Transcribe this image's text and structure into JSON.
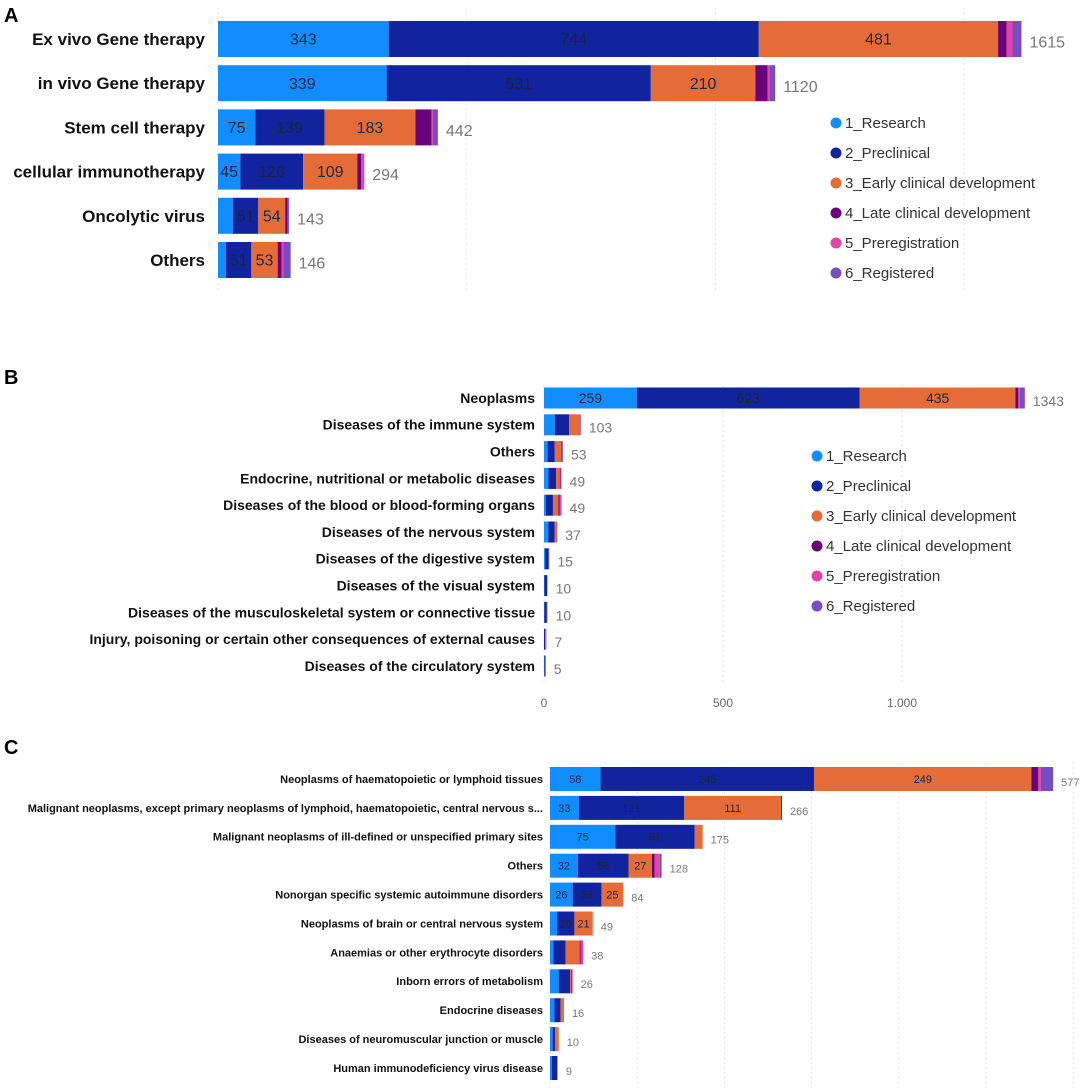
{
  "legend": {
    "stages": [
      "1_Research",
      "2_Preclinical",
      "3_Early clinical development",
      "4_Late clinical development",
      "5_Preregistration",
      "6_Registered"
    ],
    "colors": [
      "#118DFF",
      "#12239E",
      "#E66C37",
      "#6B007B",
      "#E044A7",
      "#744EC2"
    ]
  },
  "chart_data": [
    {
      "panel": "A",
      "type": "bar",
      "orientation": "horizontal",
      "stacked": true,
      "grid": true,
      "legend_position": "right",
      "series_names": [
        "1_Research",
        "2_Preclinical",
        "3_Early clinical development",
        "4_Late clinical development",
        "5_Preregistration",
        "6_Registered"
      ],
      "rows": [
        {
          "category": "Ex vivo Gene therapy",
          "values": [
            343,
            744,
            481,
            17,
            12,
            18
          ],
          "labels": [
            "343",
            "744",
            "481",
            "",
            "",
            ""
          ],
          "total": "1615"
        },
        {
          "category": "in vivo Gene therapy",
          "values": [
            339,
            531,
            210,
            25,
            3,
            12
          ],
          "labels": [
            "339",
            "531",
            "210",
            "",
            "",
            ""
          ],
          "total": "1120"
        },
        {
          "category": "Stem cell therapy",
          "values": [
            75,
            139,
            183,
            32,
            3,
            10
          ],
          "labels": [
            "75",
            "139",
            "183",
            "",
            "",
            ""
          ],
          "total": "442"
        },
        {
          "category": "cellular immunotherapy",
          "values": [
            45,
            126,
            109,
            8,
            6,
            0
          ],
          "labels": [
            "45",
            "126",
            "109",
            "",
            "",
            ""
          ],
          "total": "294"
        },
        {
          "category": "Oncolytic virus",
          "values": [
            30,
            51,
            54,
            5,
            1,
            2
          ],
          "labels": [
            "",
            "51",
            "54",
            "",
            "",
            ""
          ],
          "total": "143"
        },
        {
          "category": "Others",
          "values": [
            16,
            51,
            53,
            8,
            3,
            15
          ],
          "labels": [
            "",
            "51",
            "53",
            "",
            "",
            ""
          ],
          "total": "146"
        }
      ]
    },
    {
      "panel": "B",
      "type": "bar",
      "orientation": "horizontal",
      "stacked": true,
      "grid": true,
      "legend_position": "right",
      "xlim": [
        0,
        1350
      ],
      "xticks": [
        "0",
        "500",
        "1.000"
      ],
      "xtick_values": [
        0,
        500,
        1000
      ],
      "rows": [
        {
          "category": "Neoplasms",
          "values": [
            259,
            623,
            435,
            8,
            4,
            14
          ],
          "labels": [
            "259",
            "623",
            "435",
            "",
            "",
            ""
          ],
          "total": "1343"
        },
        {
          "category": "Diseases of the immune system",
          "values": [
            30,
            40,
            30,
            1,
            1,
            1
          ],
          "labels": [
            "",
            "",
            "",
            "",
            "",
            ""
          ],
          "total": "103"
        },
        {
          "category": "Others",
          "values": [
            10,
            20,
            18,
            2,
            1,
            2
          ],
          "labels": [
            "",
            "",
            "",
            "",
            "",
            ""
          ],
          "total": "53"
        },
        {
          "category": "Endocrine, nutritional or metabolic diseases",
          "values": [
            12,
            22,
            10,
            2,
            2,
            1
          ],
          "labels": [
            "",
            "",
            "",
            "",
            "",
            ""
          ],
          "total": "49"
        },
        {
          "category": "Diseases of the blood or blood-forming organs",
          "values": [
            5,
            20,
            15,
            4,
            3,
            2
          ],
          "labels": [
            "",
            "",
            "",
            "",
            "",
            ""
          ],
          "total": "49"
        },
        {
          "category": "Diseases of the nervous system",
          "values": [
            12,
            18,
            6,
            1,
            0,
            0
          ],
          "labels": [
            "",
            "",
            "",
            "",
            "",
            ""
          ],
          "total": "37"
        },
        {
          "category": "Diseases of the digestive system",
          "values": [
            3,
            10,
            2,
            0,
            0,
            0
          ],
          "labels": [
            "",
            "",
            "",
            "",
            "",
            ""
          ],
          "total": "15"
        },
        {
          "category": "Diseases of the visual system",
          "values": [
            1,
            8,
            1,
            0,
            0,
            0
          ],
          "labels": [
            "",
            "",
            "",
            "",
            "",
            ""
          ],
          "total": "10"
        },
        {
          "category": "Diseases of the musculoskeletal system or connective tissue",
          "values": [
            1,
            7,
            1,
            0,
            0,
            1
          ],
          "labels": [
            "",
            "",
            "",
            "",
            "",
            ""
          ],
          "total": "10"
        },
        {
          "category": "Injury, poisoning or certain other consequences of external causes",
          "values": [
            0,
            3,
            3,
            0,
            1,
            0
          ],
          "labels": [
            "",
            "",
            "",
            "",
            "",
            ""
          ],
          "total": "7"
        },
        {
          "category": "Diseases of the circulatory system",
          "values": [
            1,
            3,
            1,
            0,
            0,
            0
          ],
          "labels": [
            "",
            "",
            "",
            "",
            "",
            ""
          ],
          "total": "5"
        }
      ]
    },
    {
      "panel": "C",
      "type": "bar",
      "orientation": "horizontal",
      "stacked": true,
      "grid": true,
      "rows": [
        {
          "category": "Neoplasms of haematopoietic or lymphoid tissues",
          "values": [
            58,
            245,
            249,
            8,
            3,
            14
          ],
          "labels": [
            "58",
            "245",
            "249",
            "",
            "",
            ""
          ],
          "total": "577"
        },
        {
          "category": "Malignant neoplasms, except primary neoplasms of lymphoid, haematopoietic, central nervous s...",
          "values": [
            33,
            121,
            111,
            1,
            0,
            0
          ],
          "labels": [
            "33",
            "121",
            "111",
            "",
            "",
            ""
          ],
          "total": "266"
        },
        {
          "category": "Malignant neoplasms of ill-defined or unspecified primary sites",
          "values": [
            75,
            91,
            9,
            0,
            0,
            0
          ],
          "labels": [
            "75",
            "91",
            "",
            "",
            "",
            ""
          ],
          "total": "175"
        },
        {
          "category": "Others",
          "values": [
            32,
            58,
            27,
            3,
            6,
            2
          ],
          "labels": [
            "32",
            "58",
            "27",
            "",
            "",
            ""
          ],
          "total": "128"
        },
        {
          "category": "Nonorgan specific systemic autoimmune disorders",
          "values": [
            26,
            33,
            25,
            0,
            0,
            0
          ],
          "labels": [
            "26",
            "33",
            "25",
            "",
            "",
            ""
          ],
          "total": "84"
        },
        {
          "category": "Neoplasms of brain or central nervous system",
          "values": [
            8,
            20,
            21,
            0,
            0,
            0
          ],
          "labels": [
            "",
            "20",
            "21",
            "",
            "",
            ""
          ],
          "total": "49"
        },
        {
          "category": "Anaemias or other erythrocyte disorders",
          "values": [
            4,
            14,
            16,
            1,
            3,
            0
          ],
          "labels": [
            "",
            "",
            "",
            "",
            "",
            ""
          ],
          "total": "38"
        },
        {
          "category": "Inborn errors of metabolism",
          "values": [
            10,
            13,
            1,
            1,
            1,
            0
          ],
          "labels": [
            "",
            "",
            "",
            "",
            "",
            ""
          ],
          "total": "26"
        },
        {
          "category": "Endocrine diseases",
          "values": [
            5,
            7,
            4,
            0,
            0,
            0
          ],
          "labels": [
            "",
            "",
            "",
            "",
            "",
            ""
          ],
          "total": "16"
        },
        {
          "category": "Diseases of neuromuscular junction or muscle",
          "values": [
            3,
            3,
            4,
            0,
            0,
            0
          ],
          "labels": [
            "",
            "",
            "",
            "",
            "",
            ""
          ],
          "total": "10"
        },
        {
          "category": "Human immunodeficiency virus disease",
          "values": [
            2,
            6,
            1,
            0,
            0,
            0
          ],
          "labels": [
            "",
            "",
            "",
            "",
            "",
            ""
          ],
          "total": "9"
        }
      ]
    }
  ],
  "panels": {
    "A": "A",
    "B": "B",
    "C": "C"
  }
}
